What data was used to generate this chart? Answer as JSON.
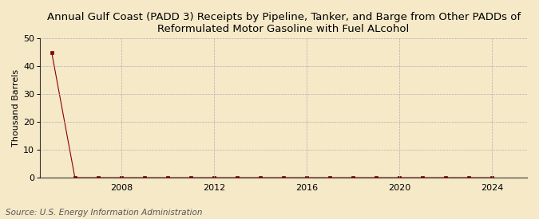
{
  "title": "Annual Gulf Coast (PADD 3) Receipts by Pipeline, Tanker, and Barge from Other PADDs of\nReformulated Motor Gasoline with Fuel ALcohol",
  "ylabel": "Thousand Barrels",
  "source": "Source: U.S. Energy Information Administration",
  "background_color": "#f5e9c8",
  "plot_background_color": "#f5e9c8",
  "xlim": [
    2004.5,
    2025.5
  ],
  "ylim": [
    0,
    50
  ],
  "yticks": [
    0,
    10,
    20,
    30,
    40,
    50
  ],
  "xticks": [
    2008,
    2012,
    2016,
    2020,
    2024
  ],
  "data_years": [
    2005,
    2006,
    2007,
    2008,
    2009,
    2010,
    2011,
    2012,
    2013,
    2014,
    2015,
    2016,
    2017,
    2018,
    2019,
    2020,
    2021,
    2022,
    2023,
    2024
  ],
  "data_values": [
    45,
    0,
    0,
    0,
    0,
    0,
    0,
    0,
    0,
    0,
    0,
    0,
    0,
    0,
    0,
    0,
    0,
    0,
    0,
    0
  ],
  "marker_color": "#8b0000",
  "line_color": "#8b0000",
  "grid_color": "#b0b0b0",
  "title_fontsize": 9.5,
  "axis_fontsize": 8,
  "ylabel_fontsize": 8,
  "source_fontsize": 7.5
}
